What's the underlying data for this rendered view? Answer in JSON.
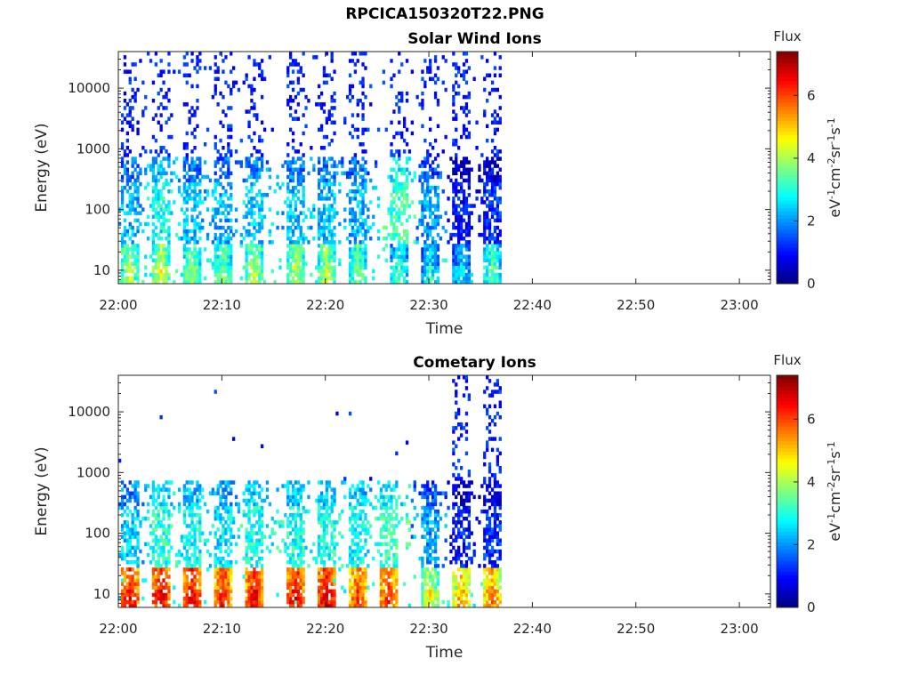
{
  "figure": {
    "title": "RPCICA150320T22.PNG"
  },
  "chart_data": [
    {
      "type": "heatmap",
      "title": "Solar Wind Ions",
      "xlabel": "Time",
      "ylabel": "Energy (eV)",
      "x_ticks": [
        "22:00",
        "22:10",
        "22:20",
        "22:30",
        "22:40",
        "22:50",
        "23:00"
      ],
      "xlim": [
        "22:00",
        "23:03"
      ],
      "y_scale": "log",
      "y_ticks": [
        10,
        100,
        1000,
        10000
      ],
      "ylim": [
        6,
        40000
      ],
      "data_end": "22:37",
      "colorbar": {
        "title": "Flux",
        "label": "eV-1cm-2sr-1s-1",
        "ticks": [
          0,
          2,
          4,
          6
        ],
        "range": [
          0,
          7.4
        ],
        "colormap": "jet"
      },
      "bursts": [
        {
          "time": "22:01",
          "low_flux": 4.5,
          "mid_flux": 2.8
        },
        {
          "time": "22:04",
          "low_flux": 4.6,
          "mid_flux": 3.4
        },
        {
          "time": "22:07",
          "low_flux": 4.3,
          "mid_flux": 2.9
        },
        {
          "time": "22:10",
          "low_flux": 4.1,
          "mid_flux": 2.8
        },
        {
          "time": "22:13",
          "low_flux": 4.4,
          "mid_flux": 3.0
        },
        {
          "time": "22:17",
          "low_flux": 4.5,
          "mid_flux": 2.9
        },
        {
          "time": "22:20",
          "low_flux": 4.4,
          "mid_flux": 2.9
        },
        {
          "time": "22:23",
          "low_flux": 4.0,
          "mid_flux": 2.8
        },
        {
          "time": "22:27",
          "low_flux": 3.5,
          "mid_flux": 3.8
        },
        {
          "time": "22:30",
          "low_flux": 3.2,
          "mid_flux": 2.6
        },
        {
          "time": "22:33",
          "low_flux": 3.0,
          "mid_flux": 1.5
        },
        {
          "time": "22:36",
          "low_flux": 3.8,
          "mid_flux": 1.8
        }
      ]
    },
    {
      "type": "heatmap",
      "title": "Cometary Ions",
      "xlabel": "Time",
      "ylabel": "Energy (eV)",
      "x_ticks": [
        "22:00",
        "22:10",
        "22:20",
        "22:30",
        "22:40",
        "22:50",
        "23:00"
      ],
      "xlim": [
        "22:00",
        "23:03"
      ],
      "y_scale": "log",
      "y_ticks": [
        10,
        100,
        1000,
        10000
      ],
      "ylim": [
        6,
        40000
      ],
      "data_end": "22:37",
      "colorbar": {
        "title": "Flux",
        "label": "eV-1cm-2sr-1s-1",
        "ticks": [
          0,
          2,
          4,
          6
        ],
        "range": [
          0,
          7.4
        ],
        "colormap": "jet"
      },
      "bursts": [
        {
          "time": "22:01",
          "low_flux": 6.8,
          "mid_flux": 3.0
        },
        {
          "time": "22:04",
          "low_flux": 6.9,
          "mid_flux": 3.6
        },
        {
          "time": "22:07",
          "low_flux": 6.9,
          "mid_flux": 3.4
        },
        {
          "time": "22:10",
          "low_flux": 6.6,
          "mid_flux": 3.2
        },
        {
          "time": "22:13",
          "low_flux": 6.8,
          "mid_flux": 3.5
        },
        {
          "time": "22:17",
          "low_flux": 6.9,
          "mid_flux": 3.5
        },
        {
          "time": "22:20",
          "low_flux": 7.0,
          "mid_flux": 3.5
        },
        {
          "time": "22:23",
          "low_flux": 6.3,
          "mid_flux": 3.4
        },
        {
          "time": "22:26",
          "low_flux": 6.5,
          "mid_flux": 3.8
        },
        {
          "time": "22:30",
          "low_flux": 4.8,
          "mid_flux": 2.6
        },
        {
          "time": "22:33",
          "low_flux": 5.6,
          "mid_flux": 1.6
        },
        {
          "time": "22:36",
          "low_flux": 5.8,
          "mid_flux": 1.8
        }
      ]
    }
  ]
}
